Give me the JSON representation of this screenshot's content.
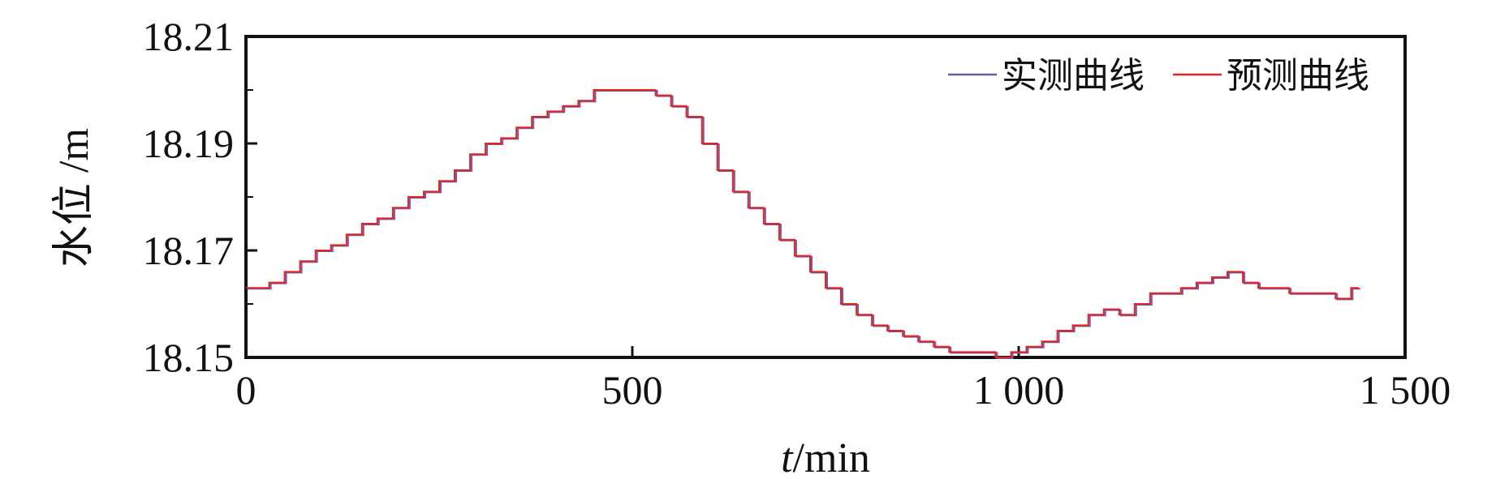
{
  "chart_data": {
    "type": "line",
    "xlabel_var": "t",
    "xlabel_unit": "/min",
    "ylabel": "水位 /m",
    "xlim": [
      0,
      1500
    ],
    "ylim": [
      18.15,
      18.21
    ],
    "x_ticks": [
      0,
      500,
      1000,
      1500
    ],
    "x_tick_labels": [
      "0",
      "500",
      "1 000",
      "1 500"
    ],
    "y_ticks": [
      18.15,
      18.17,
      18.19,
      18.21
    ],
    "y_tick_labels": [
      "18.15",
      "18.17",
      "18.19",
      "18.21"
    ],
    "y_minor_ticks": [
      18.16,
      18.18,
      18.2
    ],
    "grid": false,
    "legend_position": "top-right",
    "series": [
      {
        "name": "实测曲线",
        "color": "#6b5fa8",
        "x": [
          0,
          20,
          40,
          60,
          80,
          100,
          120,
          140,
          160,
          180,
          200,
          220,
          240,
          260,
          280,
          300,
          320,
          340,
          360,
          380,
          400,
          420,
          440,
          460,
          480,
          500,
          520,
          540,
          560,
          580,
          600,
          620,
          640,
          660,
          680,
          700,
          720,
          740,
          760,
          780,
          800,
          820,
          840,
          860,
          880,
          900,
          920,
          940,
          960,
          980,
          1000,
          1020,
          1040,
          1060,
          1080,
          1100,
          1120,
          1140,
          1160,
          1180,
          1200,
          1220,
          1240,
          1260,
          1280,
          1300,
          1320,
          1340,
          1360,
          1380,
          1400,
          1420,
          1440
        ],
        "y": [
          18.163,
          18.163,
          18.164,
          18.166,
          18.168,
          18.17,
          18.171,
          18.173,
          18.175,
          18.176,
          18.178,
          18.18,
          18.181,
          18.183,
          18.185,
          18.188,
          18.19,
          18.191,
          18.193,
          18.195,
          18.196,
          18.197,
          18.198,
          18.2,
          18.2,
          18.2,
          18.2,
          18.199,
          18.197,
          18.195,
          18.19,
          18.185,
          18.181,
          18.178,
          18.175,
          18.172,
          18.169,
          18.166,
          18.163,
          18.16,
          18.158,
          18.156,
          18.155,
          18.154,
          18.153,
          18.152,
          18.151,
          18.151,
          18.151,
          18.15,
          18.151,
          18.152,
          18.153,
          18.155,
          18.156,
          18.158,
          18.159,
          18.158,
          18.16,
          18.162,
          18.162,
          18.163,
          18.164,
          18.165,
          18.166,
          18.164,
          18.163,
          18.163,
          18.162,
          18.162,
          18.162,
          18.161,
          18.163
        ]
      },
      {
        "name": "预测曲线",
        "color": "#e8201e",
        "x": [
          0,
          20,
          40,
          60,
          80,
          100,
          120,
          140,
          160,
          180,
          200,
          220,
          240,
          260,
          280,
          300,
          320,
          340,
          360,
          380,
          400,
          420,
          440,
          460,
          480,
          500,
          520,
          540,
          560,
          580,
          600,
          620,
          640,
          660,
          680,
          700,
          720,
          740,
          760,
          780,
          800,
          820,
          840,
          860,
          880,
          900,
          920,
          940,
          960,
          980,
          1000,
          1020,
          1040,
          1060,
          1080,
          1100,
          1120,
          1140,
          1160,
          1180,
          1200,
          1220,
          1240,
          1260,
          1280,
          1300,
          1320,
          1340,
          1360,
          1380,
          1400,
          1420,
          1440
        ],
        "y": [
          18.163,
          18.163,
          18.164,
          18.166,
          18.168,
          18.17,
          18.171,
          18.173,
          18.175,
          18.176,
          18.178,
          18.18,
          18.181,
          18.183,
          18.185,
          18.188,
          18.19,
          18.191,
          18.193,
          18.195,
          18.196,
          18.197,
          18.198,
          18.2,
          18.2,
          18.2,
          18.2,
          18.199,
          18.197,
          18.195,
          18.19,
          18.185,
          18.181,
          18.178,
          18.175,
          18.172,
          18.169,
          18.166,
          18.163,
          18.16,
          18.158,
          18.156,
          18.155,
          18.154,
          18.153,
          18.152,
          18.151,
          18.151,
          18.151,
          18.15,
          18.151,
          18.152,
          18.153,
          18.155,
          18.156,
          18.158,
          18.159,
          18.158,
          18.16,
          18.162,
          18.162,
          18.163,
          18.164,
          18.165,
          18.166,
          18.164,
          18.163,
          18.163,
          18.162,
          18.162,
          18.162,
          18.161,
          18.163
        ]
      }
    ]
  }
}
